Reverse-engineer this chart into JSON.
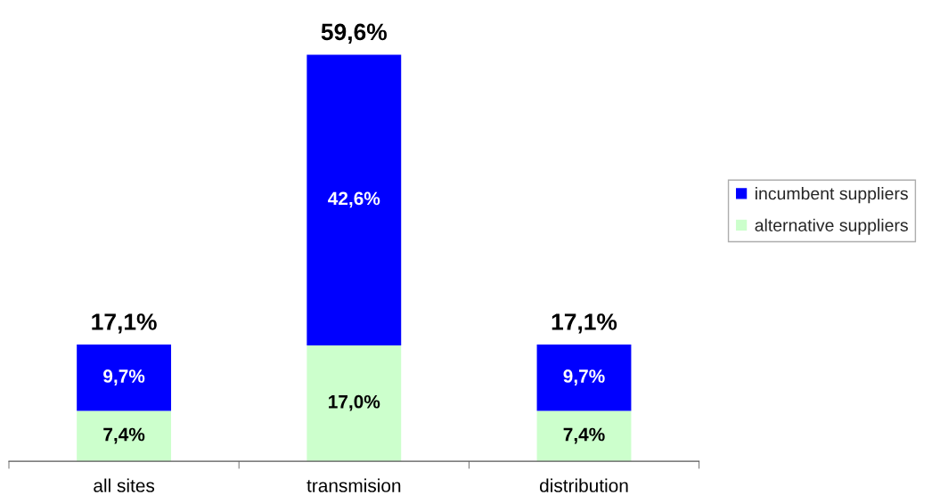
{
  "chart_data": {
    "type": "bar",
    "stacked": true,
    "categories": [
      "all sites",
      "transmision",
      "distribution"
    ],
    "series": [
      {
        "name": "alternative suppliers",
        "color": "#ccffcc",
        "values": [
          7.4,
          17.0,
          7.4
        ],
        "value_labels": [
          "7,4%",
          "17,0%",
          "7,4%"
        ]
      },
      {
        "name": "incumbent suppliers",
        "color": "#0000ff",
        "values": [
          9.7,
          42.6,
          9.7
        ],
        "value_labels": [
          "9,7%",
          "42,6%",
          "9,7%"
        ]
      }
    ],
    "totals": [
      "17,1%",
      "59,6%",
      "17,1%"
    ],
    "grid": false,
    "legend": "right"
  }
}
